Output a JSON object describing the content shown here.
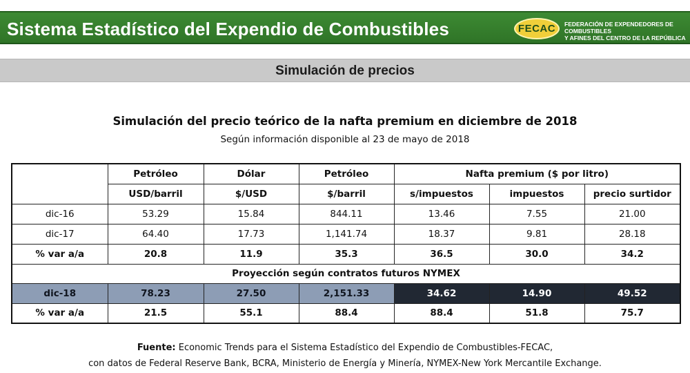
{
  "header": {
    "title": "Sistema Estadístico del Expendio de Combustibles",
    "logo_mark": "FECAC",
    "logo_text_line1": "FEDERACIÓN DE EXPENDEDORES DE COMBUSTIBLES",
    "logo_text_line2": "Y AFINES DEL CENTRO DE LA REPÚBLICA"
  },
  "section": {
    "title": "Simulación de precios"
  },
  "document": {
    "title": "Simulación del precio teórico de la nafta premium en diciembre de 2018",
    "subtitle": "Según información disponible al 23 de mayo de 2018"
  },
  "table": {
    "group_headers": [
      "Petróleo",
      "Dólar",
      "Petróleo",
      "Nafta premium ($ por litro)"
    ],
    "unit_headers": [
      "USD/barril",
      "$/USD",
      "$/barril",
      "s/impuestos",
      "impuestos",
      "precio surtidor"
    ],
    "rows": [
      {
        "label": "dic-16",
        "values": [
          "53.29",
          "15.84",
          "844.11",
          "13.46",
          "7.55",
          "21.00"
        ]
      },
      {
        "label": "dic-17",
        "values": [
          "64.40",
          "17.73",
          "1,141.74",
          "18.37",
          "9.81",
          "28.18"
        ]
      },
      {
        "label": "% var a/a",
        "values": [
          "20.8",
          "11.9",
          "35.3",
          "36.5",
          "30.0",
          "34.2"
        ]
      }
    ],
    "projection_label": "Proyección según contratos futuros NYMEX",
    "projection_rows": [
      {
        "label": "dic-18",
        "values": [
          "78.23",
          "27.50",
          "2,151.33",
          "34.62",
          "14.90",
          "49.52"
        ]
      },
      {
        "label": "% var a/a",
        "values": [
          "21.5",
          "55.1",
          "88.4",
          "88.4",
          "51.8",
          "75.7"
        ]
      }
    ]
  },
  "footer": {
    "source_label": "Fuente:",
    "source_text": " Economic Trends para el Sistema Estadístico del Expendio de Combustibles-FECAC,",
    "line2": "con datos de Federal Reserve Bank, BCRA, Ministerio de Energía y Minería, NYMEX-New York Mercantile Exchange."
  },
  "colors": {
    "header_green": "#2f7427",
    "section_gray": "#c9c9c9",
    "highlight_light": "#8d9db5",
    "highlight_dark": "#212833"
  }
}
